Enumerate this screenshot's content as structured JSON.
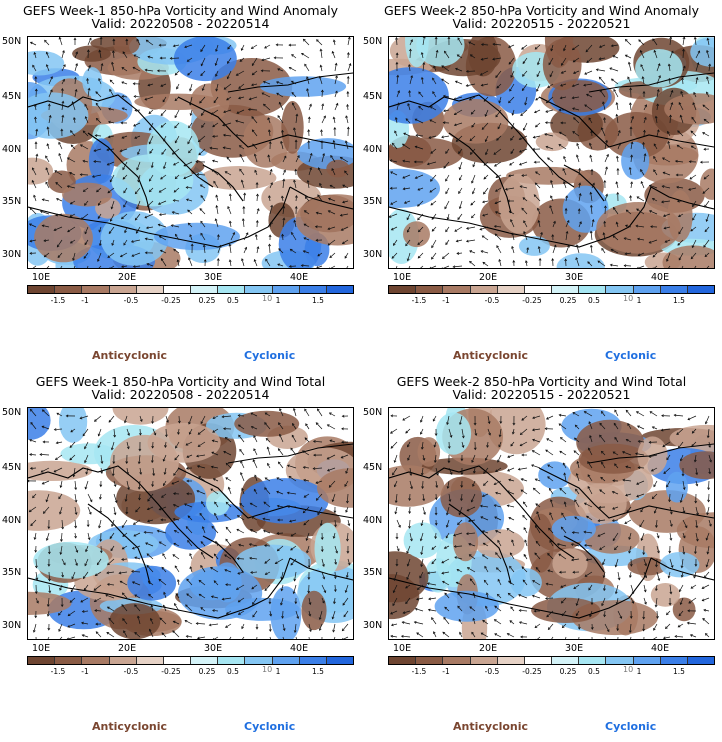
{
  "panels": [
    {
      "title": "GEFS Week-1 850-hPa Vorticity and Wind Anomaly",
      "valid": "Valid: 20220508 - 20220514"
    },
    {
      "title": "GEFS Week-2 850-hPa Vorticity and Wind Anomaly",
      "valid": "Valid: 20220515 - 20220521"
    },
    {
      "title": "GEFS Week-1 850-hPa Vorticity and Wind Total",
      "valid": "Valid: 20220508 - 20220514"
    },
    {
      "title": "GEFS Week-2 850-hPa Vorticity and Wind Total",
      "valid": "Valid: 20220515 - 20220521"
    }
  ],
  "lat_labels": [
    "50N",
    "45N",
    "40N",
    "35N",
    "30N"
  ],
  "lon_labels": [
    "10E",
    "20E",
    "30E",
    "40E"
  ],
  "colorbar": {
    "labels": [
      "-1.5",
      "-1",
      "-0.5",
      "-0.25",
      "0.25",
      "0.5",
      "1",
      "1.5"
    ],
    "unit": "10",
    "colors": [
      "#6e4531",
      "#8a5b45",
      "#a87a64",
      "#c9a592",
      "#e6d2c6",
      "#ffffff",
      "#d4f3f8",
      "#a6e6f2",
      "#84c6f3",
      "#5fa2f0",
      "#3b7fe8",
      "#2266dd"
    ]
  },
  "legend": {
    "anticyclonic": "Anticyclonic",
    "cyclonic": "Cyclonic"
  }
}
